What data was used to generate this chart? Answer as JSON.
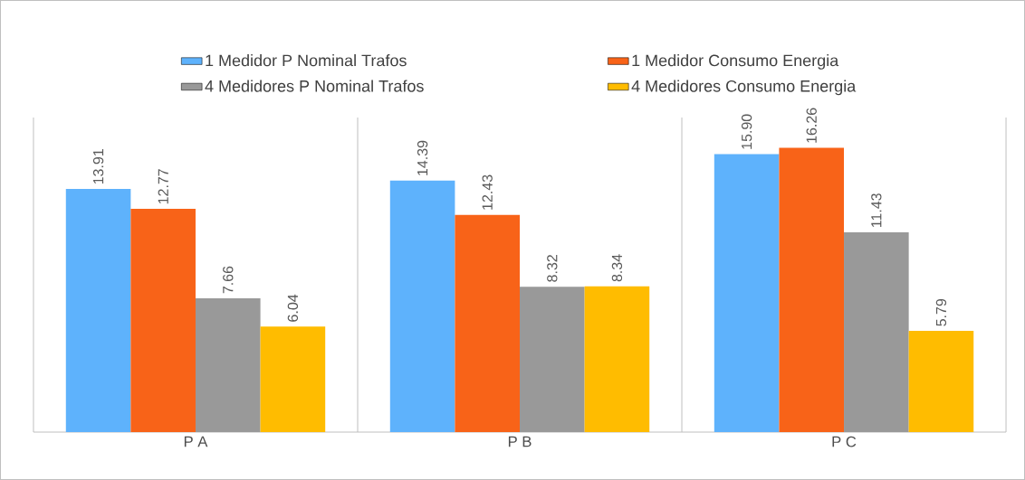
{
  "chart_data": {
    "type": "bar",
    "categories": [
      "P A",
      "P B",
      "P C"
    ],
    "series": [
      {
        "name": "1 Medidor P Nominal Trafos",
        "color": "#5eb2fc",
        "values": [
          13.91,
          14.39,
          15.9
        ],
        "value_labels": [
          "13.91",
          "14.39",
          "15.90"
        ]
      },
      {
        "name": "1 Medidor Consumo Energia",
        "color": "#f86318",
        "values": [
          12.77,
          12.43,
          16.26
        ],
        "value_labels": [
          "12.77",
          "12.43",
          "16.26"
        ]
      },
      {
        "name": "4 Medidores P Nominal Trafos",
        "color": "#999999",
        "values": [
          7.66,
          8.32,
          11.43
        ],
        "value_labels": [
          "7.66",
          "8.32",
          "11.43"
        ]
      },
      {
        "name": "4 Medidores Consumo Energia",
        "color": "#ffbc00",
        "values": [
          6.04,
          8.34,
          5.79
        ],
        "value_labels": [
          "6.04",
          "8.34",
          "5.79"
        ]
      }
    ],
    "ylim": [
      0,
      18
    ],
    "legend": "top",
    "grid": false,
    "tick_labels": "x"
  }
}
